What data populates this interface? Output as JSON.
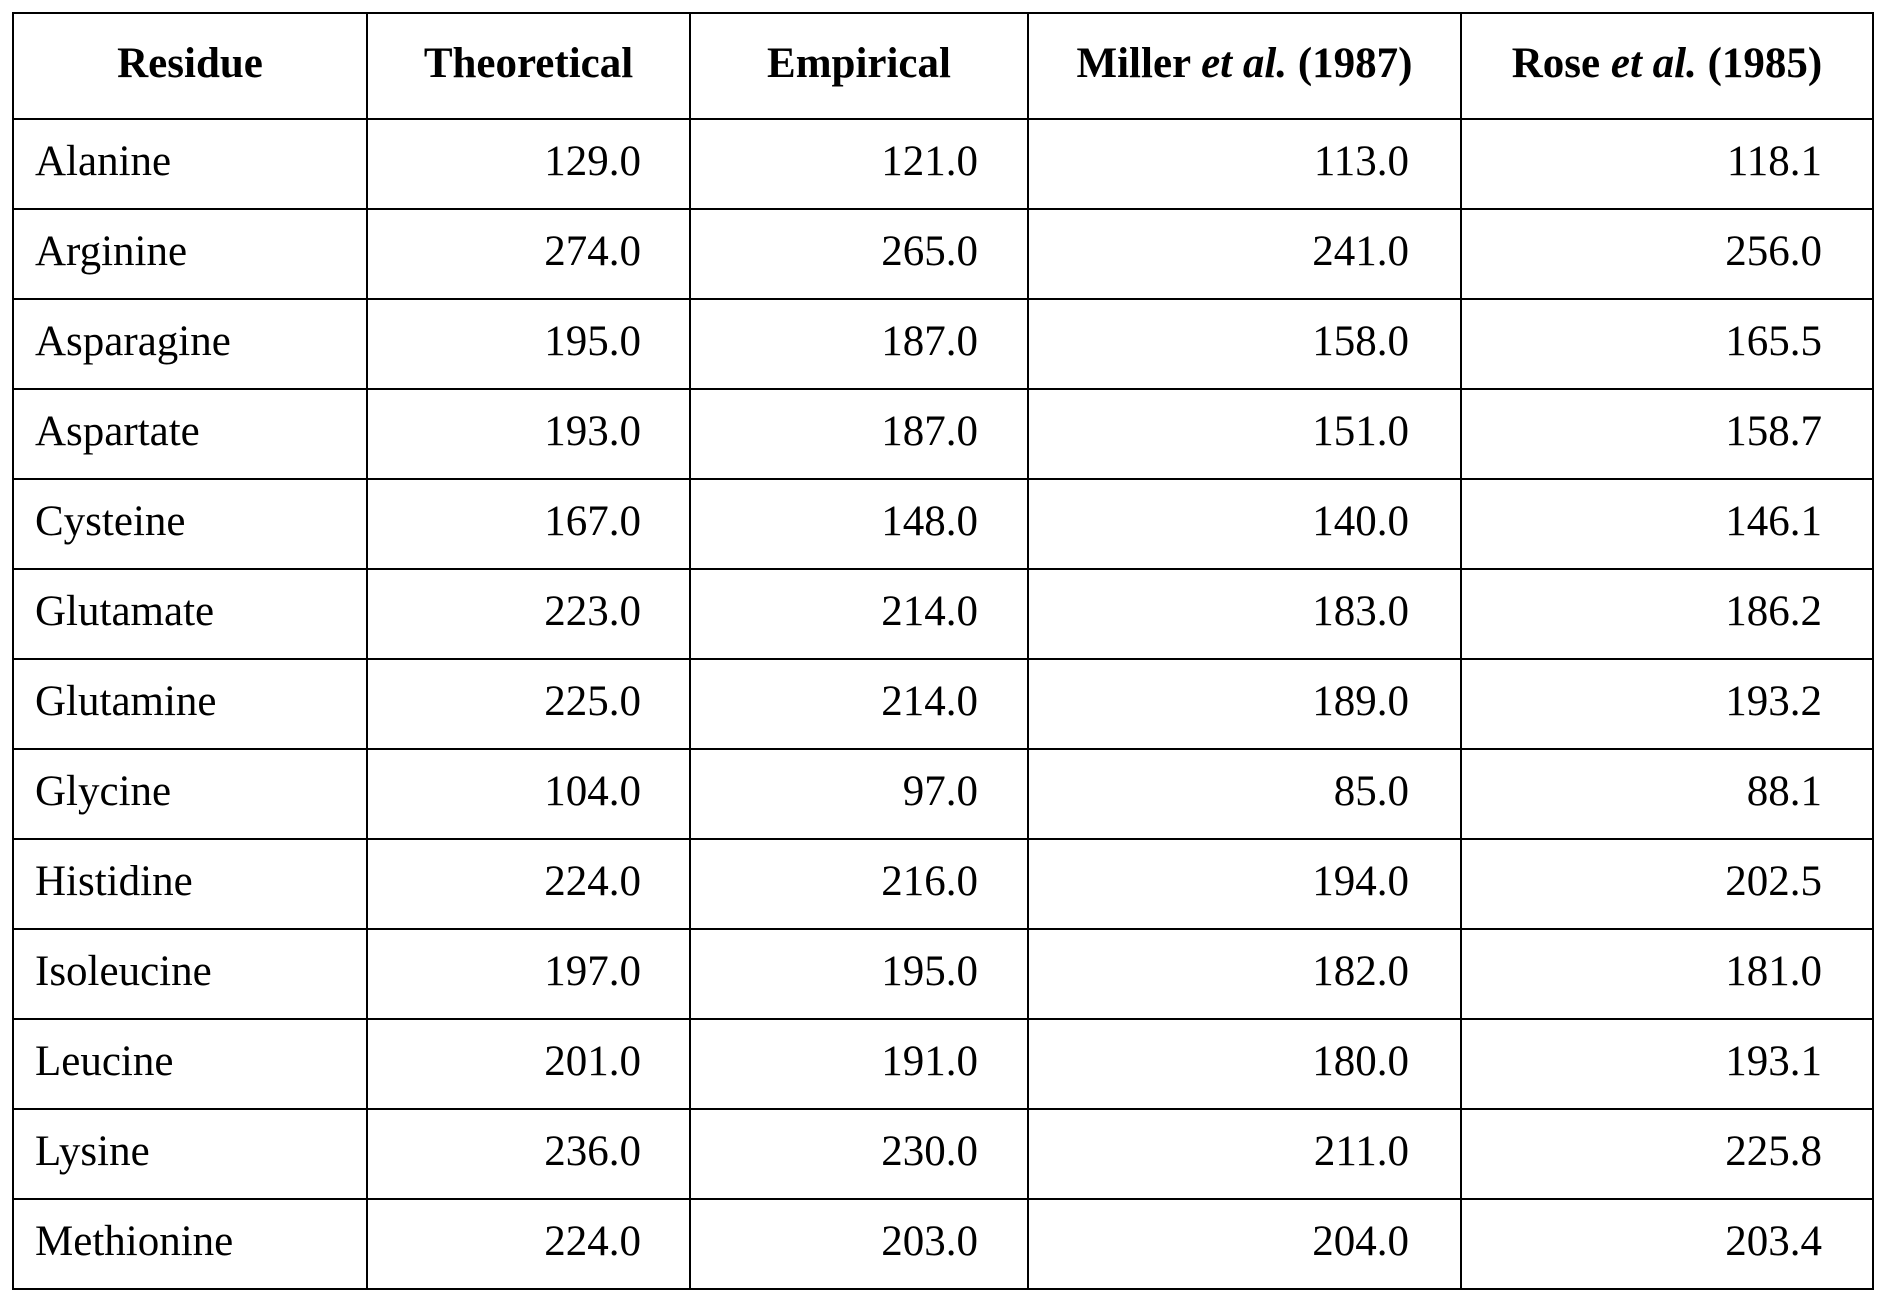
{
  "table": {
    "headers": {
      "residue": "Residue",
      "theoretical": "Theoretical",
      "empirical": "Empirical",
      "miller": {
        "pre": "Miller ",
        "ital": "et al.",
        "post": " (1987)"
      },
      "rose": {
        "pre": "Rose ",
        "ital": "et al.",
        "post": " (1985)"
      }
    },
    "rows": [
      {
        "residue": "Alanine",
        "theoretical": "129.0",
        "empirical": "121.0",
        "miller": "113.0",
        "rose": "118.1"
      },
      {
        "residue": "Arginine",
        "theoretical": "274.0",
        "empirical": "265.0",
        "miller": "241.0",
        "rose": "256.0"
      },
      {
        "residue": "Asparagine",
        "theoretical": "195.0",
        "empirical": "187.0",
        "miller": "158.0",
        "rose": "165.5"
      },
      {
        "residue": "Aspartate",
        "theoretical": "193.0",
        "empirical": "187.0",
        "miller": "151.0",
        "rose": "158.7"
      },
      {
        "residue": "Cysteine",
        "theoretical": "167.0",
        "empirical": "148.0",
        "miller": "140.0",
        "rose": "146.1"
      },
      {
        "residue": "Glutamate",
        "theoretical": "223.0",
        "empirical": "214.0",
        "miller": "183.0",
        "rose": "186.2"
      },
      {
        "residue": "Glutamine",
        "theoretical": "225.0",
        "empirical": "214.0",
        "miller": "189.0",
        "rose": "193.2"
      },
      {
        "residue": "Glycine",
        "theoretical": "104.0",
        "empirical": "97.0",
        "miller": "85.0",
        "rose": "88.1"
      },
      {
        "residue": "Histidine",
        "theoretical": "224.0",
        "empirical": "216.0",
        "miller": "194.0",
        "rose": "202.5"
      },
      {
        "residue": "Isoleucine",
        "theoretical": "197.0",
        "empirical": "195.0",
        "miller": "182.0",
        "rose": "181.0"
      },
      {
        "residue": "Leucine",
        "theoretical": "201.0",
        "empirical": "191.0",
        "miller": "180.0",
        "rose": "193.1"
      },
      {
        "residue": "Lysine",
        "theoretical": "236.0",
        "empirical": "230.0",
        "miller": "211.0",
        "rose": "225.8"
      },
      {
        "residue": "Methionine",
        "theoretical": "224.0",
        "empirical": "203.0",
        "miller": "204.0",
        "rose": "203.4"
      }
    ]
  }
}
